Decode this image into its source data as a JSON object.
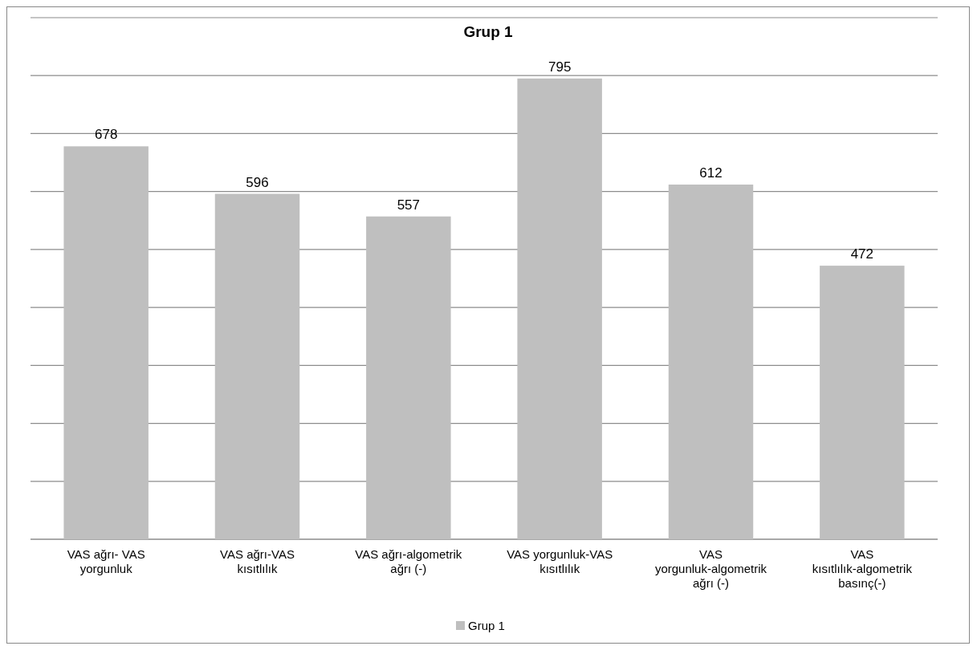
{
  "chart_data": {
    "type": "bar",
    "title": "Grup 1",
    "categories": [
      "VAS ağrı- VAS yorgunluk",
      "VAS ağrı-VAS kısıtlılık",
      "VAS ağrı-algometrik ağrı (-)",
      "VAS yorgunluk-VAS kısıtlılık",
      "VAS yorgunluk-algometrik ağrı (-)",
      "VAS kısıtlılık-algometrik basınç(-)"
    ],
    "series": [
      {
        "name": "Grup 1",
        "color": "#bfbfbf",
        "values": [
          678,
          596,
          557,
          795,
          612,
          472
        ]
      }
    ],
    "ylim": [
      0,
      900
    ],
    "yticks": [
      {
        "value": 0,
        "label": null
      },
      {
        "value": 100,
        "label": null
      },
      {
        "value": 200,
        "label": null
      },
      {
        "value": 300,
        "label": null
      },
      {
        "value": 400,
        "label": null
      },
      {
        "value": 500,
        "label": null
      },
      {
        "value": 600,
        "label": null
      },
      {
        "value": 700,
        "label": null
      },
      {
        "value": 800,
        "label": null
      },
      {
        "value": 900,
        "label": null
      }
    ],
    "grid": "y",
    "data_labels": true,
    "legend": "bottom",
    "tick_labels": "x"
  }
}
